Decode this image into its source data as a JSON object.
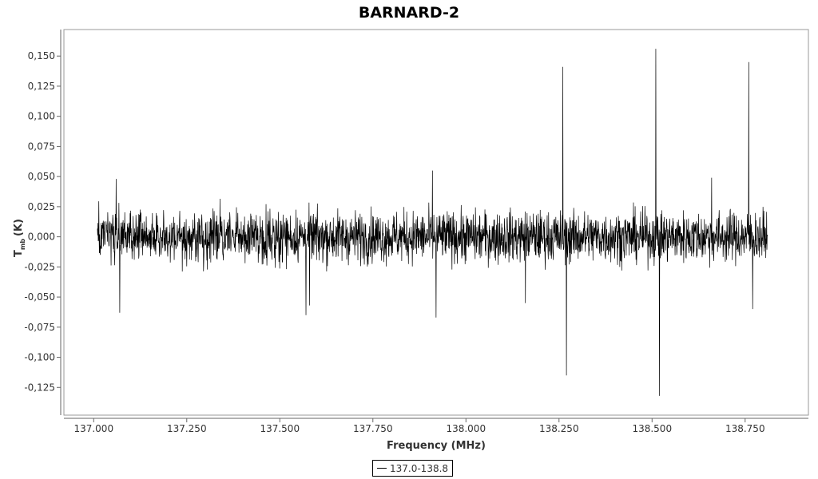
{
  "chart_data": {
    "type": "line",
    "title": "BARNARD-2",
    "xlabel": "Frequency (MHz)",
    "ylabel_main": "T",
    "ylabel_sub": "mb",
    "ylabel_unit": "(K)",
    "xlim": [
      136.92,
      138.92
    ],
    "ylim": [
      -0.148,
      0.172
    ],
    "x_ticks": [
      {
        "value": 137.0,
        "label": "137.000"
      },
      {
        "value": 137.25,
        "label": "137.250"
      },
      {
        "value": 137.5,
        "label": "137.500"
      },
      {
        "value": 137.75,
        "label": "137.750"
      },
      {
        "value": 138.0,
        "label": "138.000"
      },
      {
        "value": 138.25,
        "label": "138.250"
      },
      {
        "value": 138.5,
        "label": "138.500"
      },
      {
        "value": 138.75,
        "label": "138.750"
      }
    ],
    "y_ticks": [
      {
        "value": 0.15,
        "label": "0,150"
      },
      {
        "value": 0.125,
        "label": "0,125"
      },
      {
        "value": 0.1,
        "label": "0,100"
      },
      {
        "value": 0.075,
        "label": "0,075"
      },
      {
        "value": 0.05,
        "label": "0,050"
      },
      {
        "value": 0.025,
        "label": "0,025"
      },
      {
        "value": 0.0,
        "label": "0,000"
      },
      {
        "value": -0.025,
        "label": "-0,025"
      },
      {
        "value": -0.05,
        "label": "-0,050"
      },
      {
        "value": -0.075,
        "label": "-0,075"
      },
      {
        "value": -0.1,
        "label": "-0,100"
      },
      {
        "value": -0.125,
        "label": "-0,125"
      }
    ],
    "grid": false,
    "legend_placement": "bottom-center",
    "series": [
      {
        "name": "137.0-138.8",
        "color": "#000000",
        "x_range": [
          137.01,
          138.81
        ],
        "noise_band": [
          -0.03,
          0.03
        ],
        "spikes": [
          {
            "x": 137.06,
            "y": 0.048
          },
          {
            "x": 137.07,
            "y": -0.063
          },
          {
            "x": 137.57,
            "y": -0.065
          },
          {
            "x": 137.58,
            "y": -0.057
          },
          {
            "x": 137.91,
            "y": 0.055
          },
          {
            "x": 137.92,
            "y": -0.067
          },
          {
            "x": 138.16,
            "y": -0.055
          },
          {
            "x": 138.26,
            "y": 0.141
          },
          {
            "x": 138.27,
            "y": -0.115
          },
          {
            "x": 138.51,
            "y": 0.156
          },
          {
            "x": 138.52,
            "y": -0.132
          },
          {
            "x": 138.66,
            "y": 0.049
          },
          {
            "x": 138.76,
            "y": 0.145
          },
          {
            "x": 138.77,
            "y": -0.06
          }
        ]
      }
    ]
  }
}
